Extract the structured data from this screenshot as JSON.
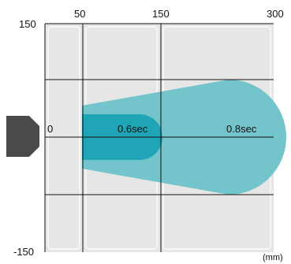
{
  "axis": {
    "x_ticks": [
      "50",
      "150",
      "300"
    ],
    "y_top": "150",
    "y_origin": "0",
    "y_bottom": "-150",
    "unit": "(mm)"
  },
  "zones": [
    {
      "label": "0.6sec",
      "color": "#1fa5b5"
    },
    {
      "label": "0.8sec",
      "color": "#74c4cc"
    }
  ],
  "colors": {
    "grid_fill": "#e6e6e6",
    "grid_line": "#111111",
    "sensor": "#4a4a4a"
  },
  "icons": {
    "sensor": "sensor-head-icon"
  }
}
